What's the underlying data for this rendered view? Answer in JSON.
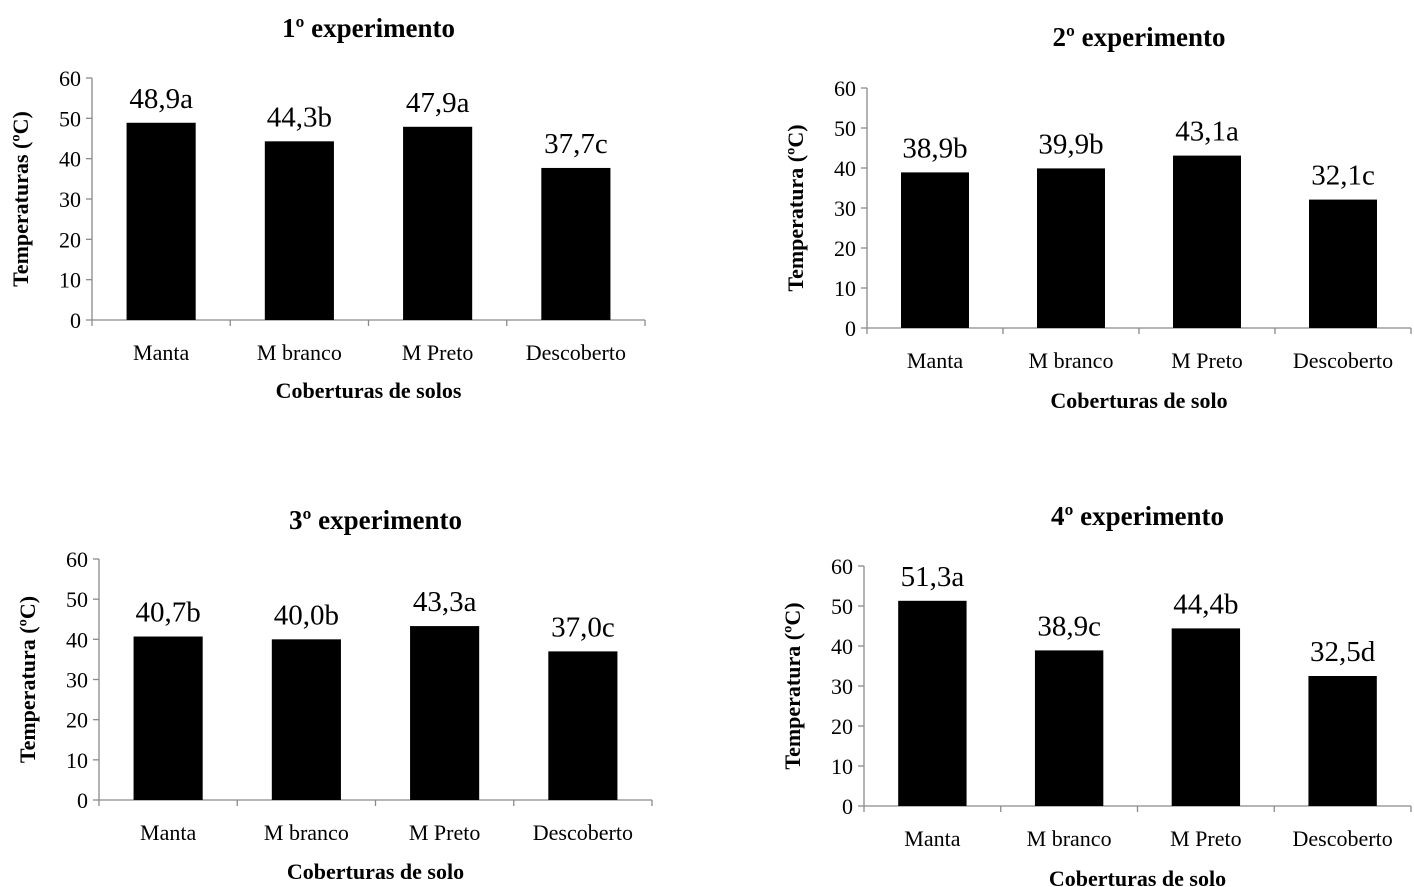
{
  "chart_data": [
    {
      "type": "bar",
      "title": "1º experimento",
      "xlabel": "Coberturas de solos",
      "ylabel": "Temperaturas (ºC)",
      "categories": [
        "Manta",
        "M branco",
        "M Preto",
        "Descoberto"
      ],
      "values": [
        48.9,
        44.3,
        47.9,
        37.7
      ],
      "data_labels": [
        "48,9a",
        "44,3b",
        "47,9a",
        "37,7c"
      ],
      "ylim": [
        0,
        60
      ],
      "yticks": [
        0,
        10,
        20,
        30,
        40,
        50,
        60
      ],
      "grid": false,
      "legend": "none",
      "bar_color": "#000000"
    },
    {
      "type": "bar",
      "title": "2º experimento",
      "xlabel": "Coberturas de solo",
      "ylabel": "Temperatura (ºC)",
      "categories": [
        "Manta",
        "M branco",
        "M Preto",
        "Descoberto"
      ],
      "values": [
        38.9,
        39.9,
        43.1,
        32.1
      ],
      "data_labels": [
        "38,9b",
        "39,9b",
        "43,1a",
        "32,1c"
      ],
      "ylim": [
        0,
        60
      ],
      "yticks": [
        0,
        10,
        20,
        30,
        40,
        50,
        60
      ],
      "grid": false,
      "legend": "none",
      "bar_color": "#000000"
    },
    {
      "type": "bar",
      "title": "3º experimento",
      "xlabel": "Coberturas de solo",
      "ylabel": "Temperatura (ºC)",
      "categories": [
        "Manta",
        "M branco",
        "M Preto",
        "Descoberto"
      ],
      "values": [
        40.7,
        40.0,
        43.3,
        37.0
      ],
      "data_labels": [
        "40,7b",
        "40,0b",
        "43,3a",
        "37,0c"
      ],
      "ylim": [
        0,
        60
      ],
      "yticks": [
        0,
        10,
        20,
        30,
        40,
        50,
        60
      ],
      "grid": false,
      "legend": "none",
      "bar_color": "#000000"
    },
    {
      "type": "bar",
      "title": "4º experimento",
      "xlabel": "Coberturas de solo",
      "ylabel": "Temperatura (ºC)",
      "categories": [
        "Manta",
        "M branco",
        "M Preto",
        "Descoberto"
      ],
      "values": [
        51.3,
        38.9,
        44.4,
        32.5
      ],
      "data_labels": [
        "51,3a",
        "38,9c",
        "44,4b",
        "32,5d"
      ],
      "ylim": [
        0,
        60
      ],
      "yticks": [
        0,
        10,
        20,
        30,
        40,
        50,
        60
      ],
      "grid": false,
      "legend": "none",
      "bar_color": "#000000"
    }
  ]
}
